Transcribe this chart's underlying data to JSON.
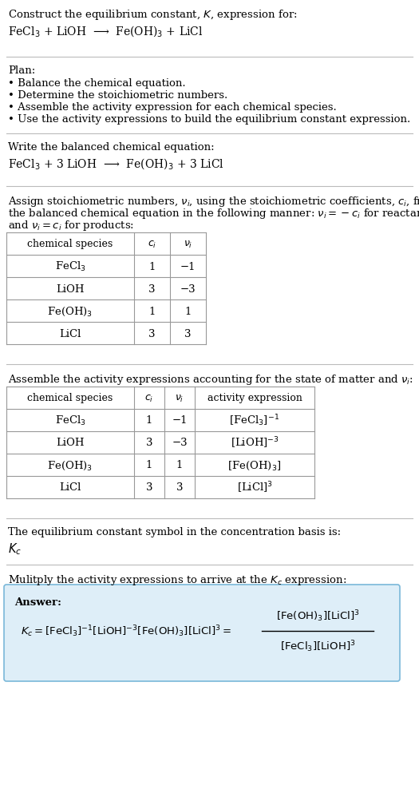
{
  "bg_color": "#ffffff",
  "title_text": "Construct the equilibrium constant, $K$, expression for:",
  "reaction_unbalanced": "FeCl$_3$ + LiOH  ⟶  Fe(OH)$_3$ + LiCl",
  "plan_header": "Plan:",
  "plan_bullets": [
    "• Balance the chemical equation.",
    "• Determine the stoichiometric numbers.",
    "• Assemble the activity expression for each chemical species.",
    "• Use the activity expressions to build the equilibrium constant expression."
  ],
  "balanced_header": "Write the balanced chemical equation:",
  "reaction_balanced": "FeCl$_3$ + 3 LiOH  ⟶  Fe(OH)$_3$ + 3 LiCl",
  "stoich_line1": "Assign stoichiometric numbers, $\\nu_i$, using the stoichiometric coefficients, $c_i$, from",
  "stoich_line2": "the balanced chemical equation in the following manner: $\\nu_i = -c_i$ for reactants",
  "stoich_line3": "and $\\nu_i = c_i$ for products:",
  "table1_headers": [
    "chemical species",
    "$c_i$",
    "$\\nu_i$"
  ],
  "table1_rows": [
    [
      "FeCl$_3$",
      "1",
      "−1"
    ],
    [
      "LiOH",
      "3",
      "−3"
    ],
    [
      "Fe(OH)$_3$",
      "1",
      "1"
    ],
    [
      "LiCl",
      "3",
      "3"
    ]
  ],
  "activity_header": "Assemble the activity expressions accounting for the state of matter and $\\nu_i$:",
  "table2_headers": [
    "chemical species",
    "$c_i$",
    "$\\nu_i$",
    "activity expression"
  ],
  "table2_rows": [
    [
      "FeCl$_3$",
      "1",
      "−1",
      "[FeCl$_3$]$^{-1}$"
    ],
    [
      "LiOH",
      "3",
      "−3",
      "[LiOH]$^{-3}$"
    ],
    [
      "Fe(OH)$_3$",
      "1",
      "1",
      "[Fe(OH)$_3$]"
    ],
    [
      "LiCl",
      "3",
      "3",
      "[LiCl]$^3$"
    ]
  ],
  "kc_symbol_header": "The equilibrium constant symbol in the concentration basis is:",
  "kc_symbol": "$K_c$",
  "multiply_header": "Mulitply the activity expressions to arrive at the $K_c$ expression:",
  "answer_label": "Answer:",
  "answer_box_color": "#deeef8",
  "answer_box_border": "#7ab8d9",
  "separator_color": "#bbbbbb",
  "text_color": "#000000",
  "table_border_color": "#999999",
  "font_size": 9.5
}
